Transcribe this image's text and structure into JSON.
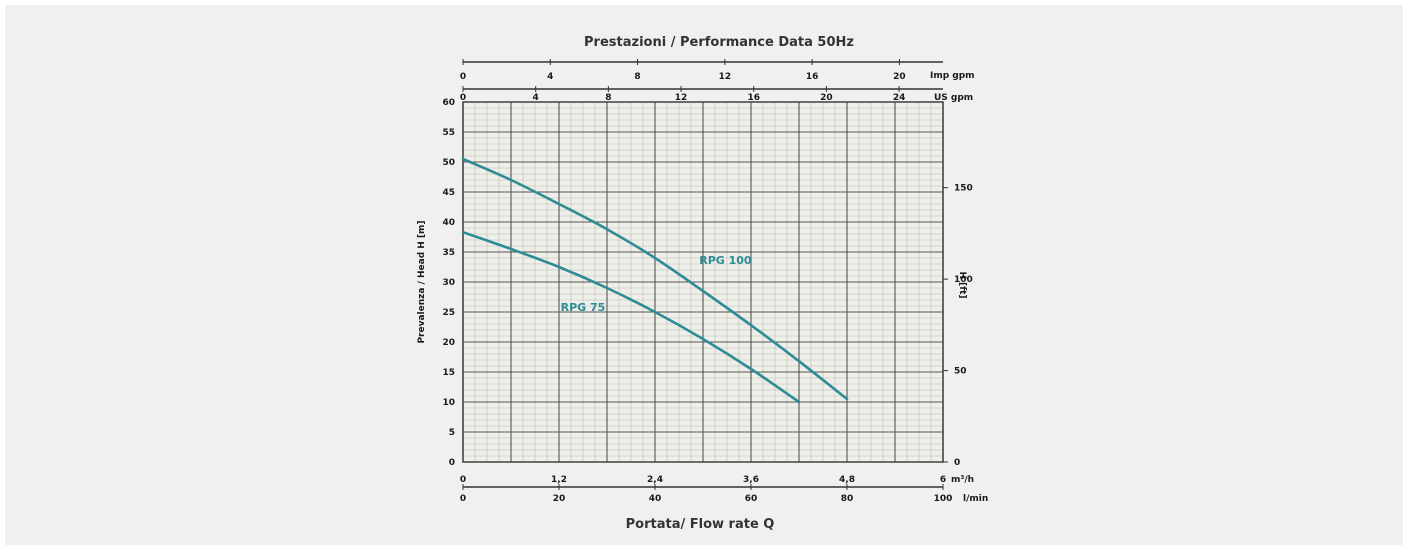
{
  "chart_data": {
    "type": "line",
    "title": "Prestazioni / Performance Data 50Hz",
    "xlabel": "Portata/ Flow rate Q",
    "ylabel": "Prevalenza / Head H [m]",
    "ylabel_right": "H [ft]",
    "xlim": [
      0,
      6
    ],
    "ylim": [
      0,
      60
    ],
    "x_unit": "m³/h",
    "x_ticks": [
      "0",
      "1,2",
      "2,4",
      "3,6",
      "4,8",
      "6"
    ],
    "x_ticks_values": [
      0,
      1.2,
      2.4,
      3.6,
      4.8,
      6
    ],
    "x2_unit": "l/min",
    "x2_ticks": [
      0,
      20,
      40,
      60,
      80,
      100
    ],
    "top_us_unit": "US gpm",
    "top_us_ticks": [
      0,
      4,
      8,
      12,
      16,
      20,
      24
    ],
    "top_imp_unit": "Imp gpm",
    "top_imp_ticks": [
      0,
      4,
      8,
      12,
      16,
      20
    ],
    "y_ticks": [
      0,
      5,
      10,
      15,
      20,
      25,
      30,
      35,
      40,
      45,
      50,
      55,
      60
    ],
    "y_right_ticks": [
      0,
      50,
      100,
      150
    ],
    "grid": true,
    "series": [
      {
        "name": "RPG 100",
        "color": "#2e8c96",
        "x": [
          0,
          0.6,
          1.2,
          1.8,
          2.4,
          3.0,
          3.6,
          4.2,
          4.8
        ],
        "y": [
          50.5,
          47.0,
          43.0,
          38.8,
          34.0,
          28.5,
          22.8,
          16.8,
          10.5
        ]
      },
      {
        "name": "RPG 75",
        "color": "#2e8c96",
        "x": [
          0,
          0.6,
          1.2,
          1.8,
          2.4,
          3.0,
          3.6,
          4.2
        ],
        "y": [
          38.3,
          35.5,
          32.5,
          29.0,
          25.0,
          20.5,
          15.5,
          10.0
        ]
      }
    ]
  }
}
